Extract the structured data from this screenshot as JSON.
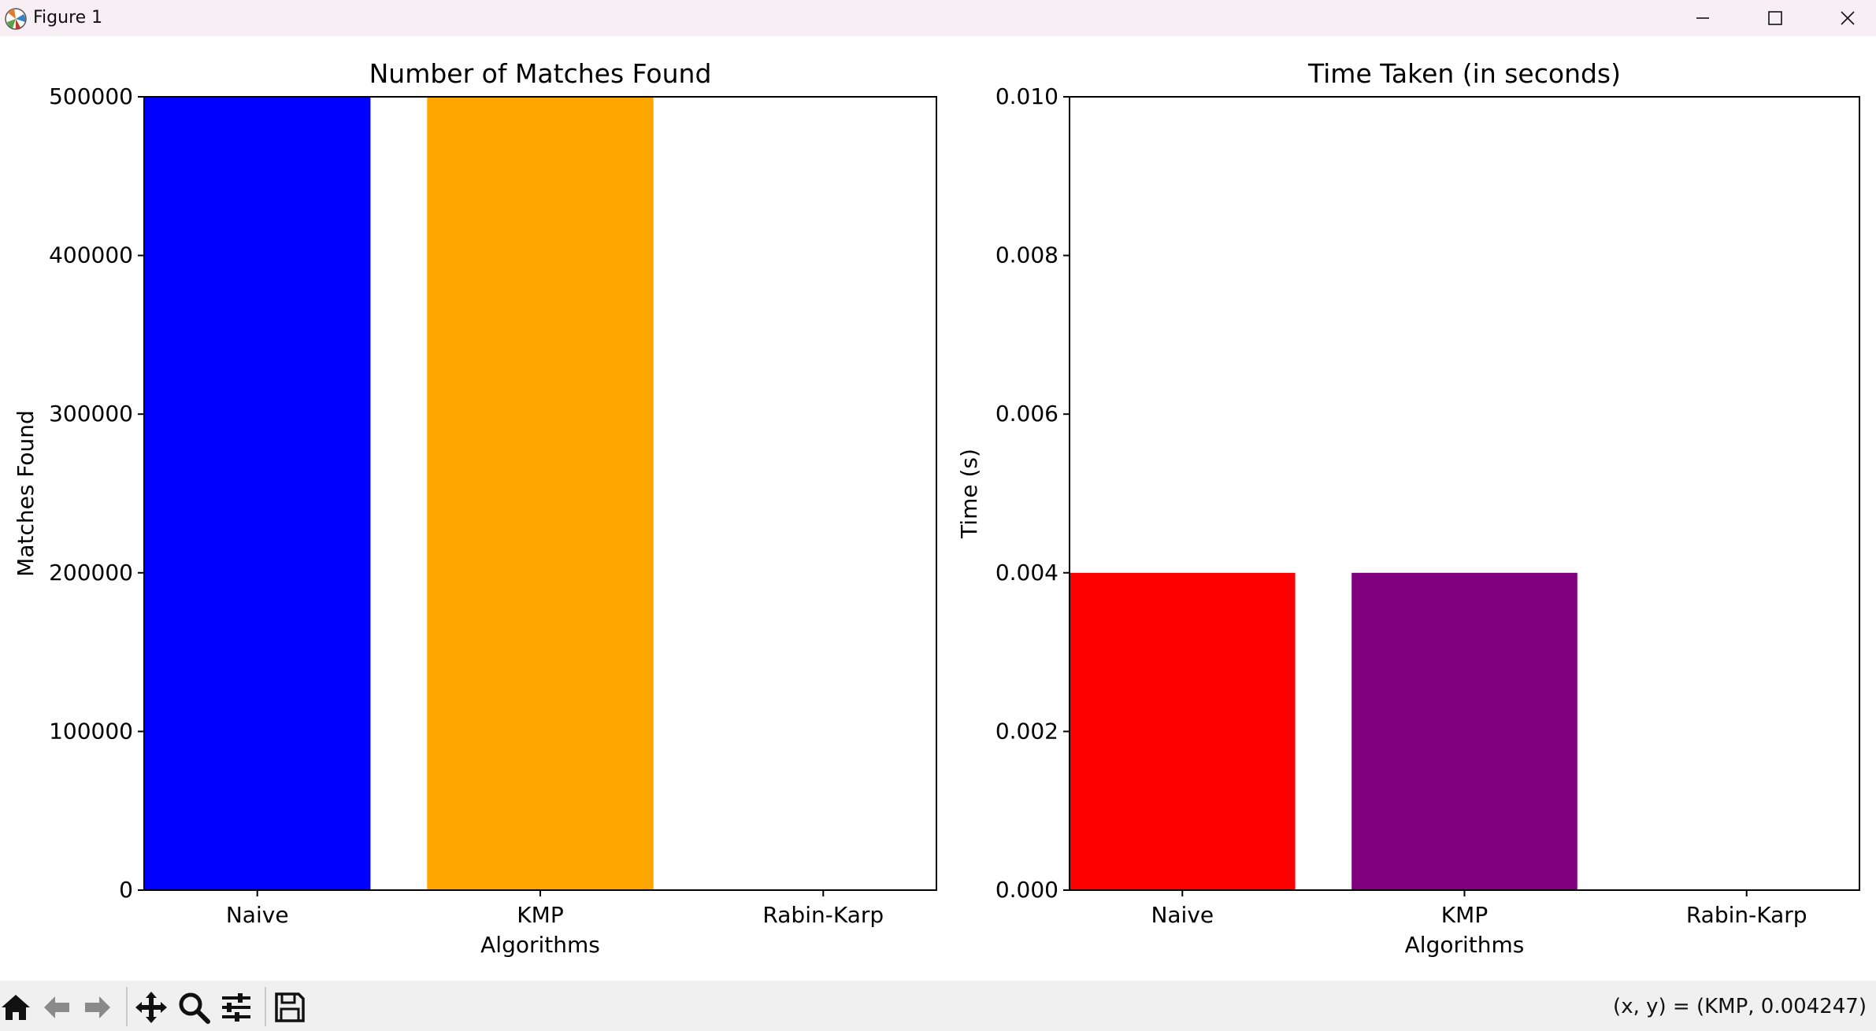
{
  "window": {
    "title": "Figure 1"
  },
  "status": {
    "coordinates": "(x, y) = (KMP, 0.004247)"
  },
  "toolbar": {
    "tools": [
      "home-icon",
      "back-icon",
      "forward-icon",
      "pan-icon",
      "zoom-icon",
      "configure-subplots-icon",
      "save-icon"
    ]
  },
  "chart_data": [
    {
      "type": "bar",
      "title": "Number of Matches Found",
      "xlabel": "Algorithms",
      "ylabel": "Matches Found",
      "categories": [
        "Naive",
        "KMP",
        "Rabin-Karp"
      ],
      "values": [
        500000,
        500000,
        0
      ],
      "colors": [
        "#0000ff",
        "#ffa500",
        "#008000"
      ],
      "ylim": [
        0,
        500000
      ],
      "yticks": [
        0,
        100000,
        200000,
        300000,
        400000,
        500000
      ],
      "ytick_labels": [
        "0",
        "100000",
        "200000",
        "300000",
        "400000",
        "500000"
      ],
      "grid": false,
      "legend": "none"
    },
    {
      "type": "bar",
      "title": "Time Taken (in seconds)",
      "xlabel": "Algorithms",
      "ylabel": "Time (s)",
      "categories": [
        "Naive",
        "KMP",
        "Rabin-Karp"
      ],
      "values": [
        0.004,
        0.004,
        0
      ],
      "colors": [
        "#ff0000",
        "#800080",
        "#008000"
      ],
      "ylim": [
        0,
        0.01
      ],
      "yticks": [
        0,
        0.002,
        0.004,
        0.006,
        0.008,
        0.01
      ],
      "ytick_labels": [
        "0.000",
        "0.002",
        "0.004",
        "0.006",
        "0.008",
        "0.010"
      ],
      "grid": false,
      "legend": "none"
    }
  ]
}
